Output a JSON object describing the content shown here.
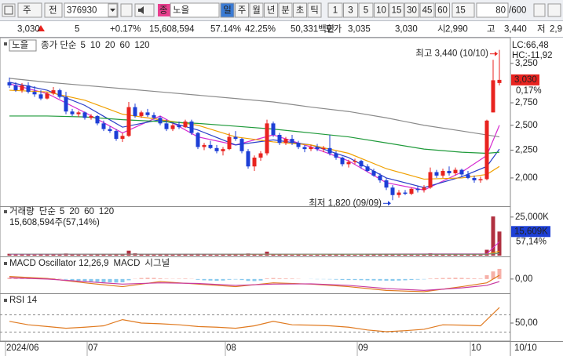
{
  "toolbar": {
    "code_label": "주",
    "type_label": "전",
    "code": "376930",
    "tag": "종",
    "name": "노을",
    "periods": [
      "일",
      "주",
      "월",
      "년",
      "분",
      "초",
      "틱"
    ],
    "intervals": [
      "1",
      "3",
      "5",
      "10",
      "15",
      "30",
      "45",
      "60"
    ],
    "interval": "15",
    "count": "80",
    "count_max": "/600"
  },
  "quote": {
    "price": "3,030",
    "change": "5",
    "change_pct": "+0.17%",
    "volume": "15,608,594",
    "turnover_pct": "57.14%",
    "ratio": "42.25%",
    "amount": "50,331백만",
    "bid_label": "호가",
    "ask": "3,035",
    "bid": "3,030",
    "open_label": "시",
    "open": "2,990",
    "high_label": "고",
    "high": "3,440",
    "low_label": "저",
    "low": "2,9"
  },
  "chart_data": [
    {
      "type": "candlestick",
      "title": "노을",
      "legend_label": "종가 단순",
      "categories": [
        "2024/06",
        null,
        null,
        null,
        null,
        null,
        null,
        null,
        null,
        null,
        null,
        null,
        null,
        "07",
        null,
        null,
        null,
        null,
        null,
        null,
        null,
        null,
        null,
        null,
        null,
        null,
        null,
        null,
        null,
        null,
        null,
        null,
        null,
        null,
        null,
        "08",
        null,
        null,
        null,
        null,
        null,
        null,
        null,
        null,
        null,
        null,
        null,
        null,
        null,
        null,
        null,
        null,
        null,
        null,
        null,
        null,
        "09",
        null,
        null,
        null,
        null,
        null,
        null,
        null,
        null,
        null,
        null,
        null,
        null,
        null,
        null,
        null,
        null,
        null,
        "10",
        null,
        null,
        null,
        null
      ],
      "date_label": "10/10",
      "open": [
        3000,
        2960,
        2900,
        2960,
        2880,
        2850,
        2800,
        2860,
        2900,
        2820,
        2650,
        2620,
        2640,
        2580,
        2600,
        2520,
        2460,
        2440,
        2360,
        2390,
        2700,
        2600,
        2640,
        2610,
        2580,
        2520,
        2460,
        2500,
        2480,
        2540,
        2420,
        2280,
        2300,
        2270,
        2240,
        2260,
        2380,
        2360,
        2240,
        2100,
        2180,
        2220,
        2520,
        2400,
        2320,
        2360,
        2320,
        2280,
        2260,
        2280,
        2260,
        2270,
        2220,
        2180,
        2120,
        2140,
        2150,
        2100,
        2060,
        2020,
        1980,
        1920,
        1860,
        1880,
        1870,
        1910,
        1900,
        1920,
        2050,
        2020,
        2060,
        2040,
        2070,
        2030,
        2000,
        1980,
        1990,
        2640,
        2990
      ],
      "high": [
        3060,
        3000,
        2990,
        3000,
        2950,
        2900,
        2880,
        2940,
        2920,
        2880,
        2680,
        2660,
        2650,
        2620,
        2610,
        2550,
        2490,
        2460,
        2420,
        2760,
        2740,
        2660,
        2680,
        2640,
        2600,
        2560,
        2520,
        2540,
        2560,
        2560,
        2430,
        2320,
        2340,
        2300,
        2280,
        2420,
        2440,
        2370,
        2260,
        2200,
        2240,
        2560,
        2540,
        2420,
        2380,
        2400,
        2340,
        2300,
        2300,
        2310,
        2290,
        2400,
        2240,
        2190,
        2160,
        2170,
        2160,
        2120,
        2080,
        2040,
        2000,
        1940,
        1900,
        1900,
        1920,
        1930,
        1940,
        2090,
        2070,
        2080,
        2100,
        2090,
        2080,
        2060,
        2020,
        2010,
        2560,
        3300,
        3440
      ],
      "low": [
        2930,
        2880,
        2870,
        2860,
        2820,
        2780,
        2790,
        2840,
        2800,
        2620,
        2600,
        2590,
        2560,
        2560,
        2500,
        2440,
        2420,
        2340,
        2330,
        2380,
        2580,
        2580,
        2590,
        2560,
        2500,
        2440,
        2440,
        2460,
        2470,
        2400,
        2260,
        2250,
        2260,
        2220,
        2200,
        2250,
        2340,
        2220,
        2080,
        2060,
        2150,
        2200,
        2380,
        2300,
        2300,
        2300,
        2260,
        2230,
        2240,
        2240,
        2230,
        2200,
        2160,
        2100,
        2090,
        2120,
        2080,
        2050,
        2010,
        1960,
        1900,
        1820,
        1840,
        1860,
        1860,
        1880,
        1880,
        1910,
        2000,
        2000,
        2020,
        2020,
        2010,
        1990,
        1960,
        1960,
        1980,
        2640,
        2960
      ],
      "close": [
        2960,
        2900,
        2960,
        2880,
        2850,
        2800,
        2860,
        2900,
        2820,
        2650,
        2620,
        2640,
        2580,
        2600,
        2520,
        2460,
        2440,
        2360,
        2390,
        2700,
        2600,
        2640,
        2610,
        2580,
        2520,
        2460,
        2500,
        2480,
        2540,
        2420,
        2280,
        2300,
        2270,
        2240,
        2260,
        2380,
        2360,
        2240,
        2100,
        2180,
        2220,
        2520,
        2400,
        2320,
        2360,
        2320,
        2280,
        2260,
        2280,
        2260,
        2270,
        2220,
        2180,
        2120,
        2140,
        2150,
        2100,
        2060,
        2020,
        1980,
        1920,
        1860,
        1880,
        1870,
        1910,
        1900,
        1920,
        2050,
        2020,
        2060,
        2040,
        2070,
        2030,
        2000,
        1980,
        1990,
        2550,
        3025,
        3030
      ],
      "up_color": "#e8231f",
      "down_color": "#1d3fd6",
      "ylim": [
        1780,
        3600
      ],
      "log_scale": true,
      "yticks": [
        {
          "value": 3250,
          "label": "3,250"
        },
        {
          "value": 2750,
          "label": "2,750"
        },
        {
          "value": 2500,
          "label": "2,500"
        },
        {
          "value": 2250,
          "label": "2,250"
        },
        {
          "value": 2000,
          "label": "2,000"
        }
      ],
      "ma_series": [
        {
          "name": "5",
          "color": "#d62bd0",
          "x": [
            0,
            6,
            12,
            18,
            24,
            30,
            36,
            42,
            48,
            54,
            60,
            66,
            72,
            76,
            78
          ],
          "values": [
            2980,
            2860,
            2640,
            2420,
            2600,
            2380,
            2300,
            2400,
            2280,
            2150,
            1960,
            1900,
            2050,
            2200,
            2500
          ]
        },
        {
          "name": "10",
          "color": "#2a3fc8",
          "x": [
            0,
            6,
            12,
            18,
            24,
            30,
            36,
            42,
            48,
            54,
            60,
            66,
            72,
            76,
            78
          ],
          "values": [
            3000,
            2900,
            2720,
            2480,
            2560,
            2450,
            2300,
            2350,
            2300,
            2180,
            2000,
            1920,
            2010,
            2100,
            2260
          ]
        },
        {
          "name": "20",
          "color": "#f0a000",
          "x": [
            0,
            6,
            12,
            18,
            24,
            30,
            36,
            42,
            48,
            54,
            60,
            66,
            72,
            76,
            78
          ],
          "values": [
            2900,
            2880,
            2780,
            2620,
            2560,
            2500,
            2380,
            2330,
            2300,
            2220,
            2080,
            1990,
            2000,
            2030,
            2100
          ]
        },
        {
          "name": "60",
          "color": "#1f9a3a",
          "x": [
            0,
            6,
            12,
            18,
            24,
            30,
            36,
            42,
            48,
            54,
            60,
            66,
            72,
            76,
            78
          ],
          "values": [
            2600,
            2600,
            2590,
            2560,
            2540,
            2520,
            2490,
            2460,
            2420,
            2380,
            2320,
            2260,
            2230,
            2220,
            2230
          ]
        },
        {
          "name": "120",
          "color": "#8a8a8a",
          "x": [
            0,
            6,
            12,
            18,
            24,
            30,
            36,
            42,
            48,
            54,
            60,
            66,
            72,
            76,
            78
          ],
          "values": [
            3050,
            3000,
            2960,
            2920,
            2880,
            2840,
            2800,
            2760,
            2700,
            2650,
            2580,
            2500,
            2440,
            2400,
            2380
          ]
        }
      ],
      "annotations": [
        {
          "text": "최고 3,440 (10/10)"
        },
        {
          "text": "최저 1,820 (09/09)"
        }
      ],
      "indicators": [
        "LC:66,48",
        "HC:-11,92"
      ],
      "last_label": "3,030",
      "last_change": "0,17%"
    },
    {
      "type": "bar",
      "title": "거래량",
      "legend_label": "단순",
      "color": "#b03040",
      "values": [
        1200,
        900,
        800,
        1000,
        700,
        800,
        900,
        1100,
        700,
        1400,
        800,
        700,
        600,
        700,
        800,
        900,
        700,
        900,
        800,
        3200,
        1500,
        900,
        800,
        700,
        800,
        900,
        700,
        800,
        900,
        1000,
        1300,
        800,
        700,
        600,
        700,
        1000,
        800,
        900,
        1400,
        900,
        800,
        2600,
        1100,
        800,
        700,
        600,
        700,
        600,
        500,
        600,
        600,
        1000,
        700,
        800,
        600,
        500,
        600,
        700,
        800,
        900,
        1200,
        1100,
        700,
        600,
        700,
        600,
        700,
        1500,
        900,
        800,
        700,
        800,
        700,
        800,
        900,
        700,
        3800,
        25400,
        15609
      ],
      "ylim": [
        0,
        31000
      ],
      "yticks": [
        {
          "value": 25000,
          "label": "25,000K"
        }
      ],
      "summary": "15,608,594주(57,14%)",
      "last_label": "15,609K",
      "last_pct": "57,14%",
      "ma_series": [
        {
          "name": "5",
          "color": "#d62bd0",
          "x": [
            0,
            39,
            76,
            78
          ],
          "values": [
            900,
            900,
            1200,
            9000
          ]
        },
        {
          "name": "20",
          "color": "#f0a000",
          "x": [
            0,
            39,
            76,
            78
          ],
          "values": [
            1000,
            900,
            900,
            2900
          ]
        },
        {
          "name": "60",
          "color": "#1f9a3a",
          "x": [
            0,
            39,
            76,
            78
          ],
          "values": [
            1000,
            950,
            900,
            1600
          ]
        },
        {
          "name": "120",
          "color": "#8a8a8a",
          "x": [
            0,
            39,
            76,
            78
          ],
          "values": [
            1000,
            1000,
            950,
            1300
          ]
        }
      ]
    },
    {
      "type": "oscillator",
      "title": "MACD Oscillator 12,26,9",
      "pos_color": "#f6b0a8",
      "neg_color": "#86c8ee",
      "values": [
        10,
        12,
        14,
        12,
        10,
        8,
        6,
        5,
        3,
        -5,
        -10,
        -14,
        -18,
        -20,
        -22,
        -25,
        -26,
        -28,
        -26,
        -10,
        2,
        8,
        10,
        9,
        6,
        3,
        2,
        3,
        4,
        2,
        -6,
        -10,
        -12,
        -14,
        -12,
        -6,
        -4,
        -8,
        -15,
        -16,
        -12,
        5,
        8,
        6,
        5,
        4,
        2,
        0,
        -1,
        -2,
        -2,
        -3,
        -5,
        -7,
        -8,
        -8,
        -9,
        -10,
        -11,
        -12,
        -13,
        -14,
        -12,
        -10,
        -7,
        -5,
        -3,
        4,
        6,
        8,
        9,
        10,
        9,
        7,
        5,
        4,
        30,
        60,
        80
      ],
      "series": [
        {
          "name": "MACD",
          "color": "#e07a20",
          "x": [
            0,
            6,
            12,
            18,
            24,
            30,
            36,
            42,
            48,
            54,
            60,
            66,
            72,
            76,
            78
          ],
          "values": [
            20,
            5,
            -30,
            -60,
            -20,
            -40,
            -60,
            -30,
            -40,
            -60,
            -90,
            -100,
            -60,
            -30,
            30
          ]
        },
        {
          "name": "시그널",
          "color": "#c83aa0",
          "x": [
            0,
            6,
            12,
            18,
            24,
            30,
            36,
            42,
            48,
            54,
            60,
            66,
            72,
            76,
            78
          ],
          "values": [
            10,
            0,
            -20,
            -40,
            -30,
            -35,
            -50,
            -40,
            -38,
            -50,
            -75,
            -90,
            -70,
            -50,
            -20
          ]
        }
      ],
      "ylim": [
        -100,
        160
      ],
      "yticks": [
        {
          "value": 0,
          "label": "0,00"
        }
      ]
    },
    {
      "type": "line",
      "title": "RSI 14",
      "color": "#e07a20",
      "x": [
        0,
        3,
        6,
        9,
        12,
        15,
        18,
        21,
        24,
        27,
        30,
        33,
        36,
        39,
        42,
        45,
        48,
        51,
        54,
        57,
        60,
        63,
        66,
        69,
        72,
        75,
        78
      ],
      "values": [
        55,
        45,
        40,
        35,
        38,
        42,
        60,
        50,
        48,
        45,
        40,
        38,
        35,
        42,
        55,
        45,
        44,
        42,
        38,
        30,
        25,
        28,
        32,
        45,
        44,
        42,
        95
      ],
      "ylim": [
        0,
        100
      ],
      "yticks": [
        {
          "value": 50,
          "label": "50,00"
        }
      ]
    }
  ]
}
